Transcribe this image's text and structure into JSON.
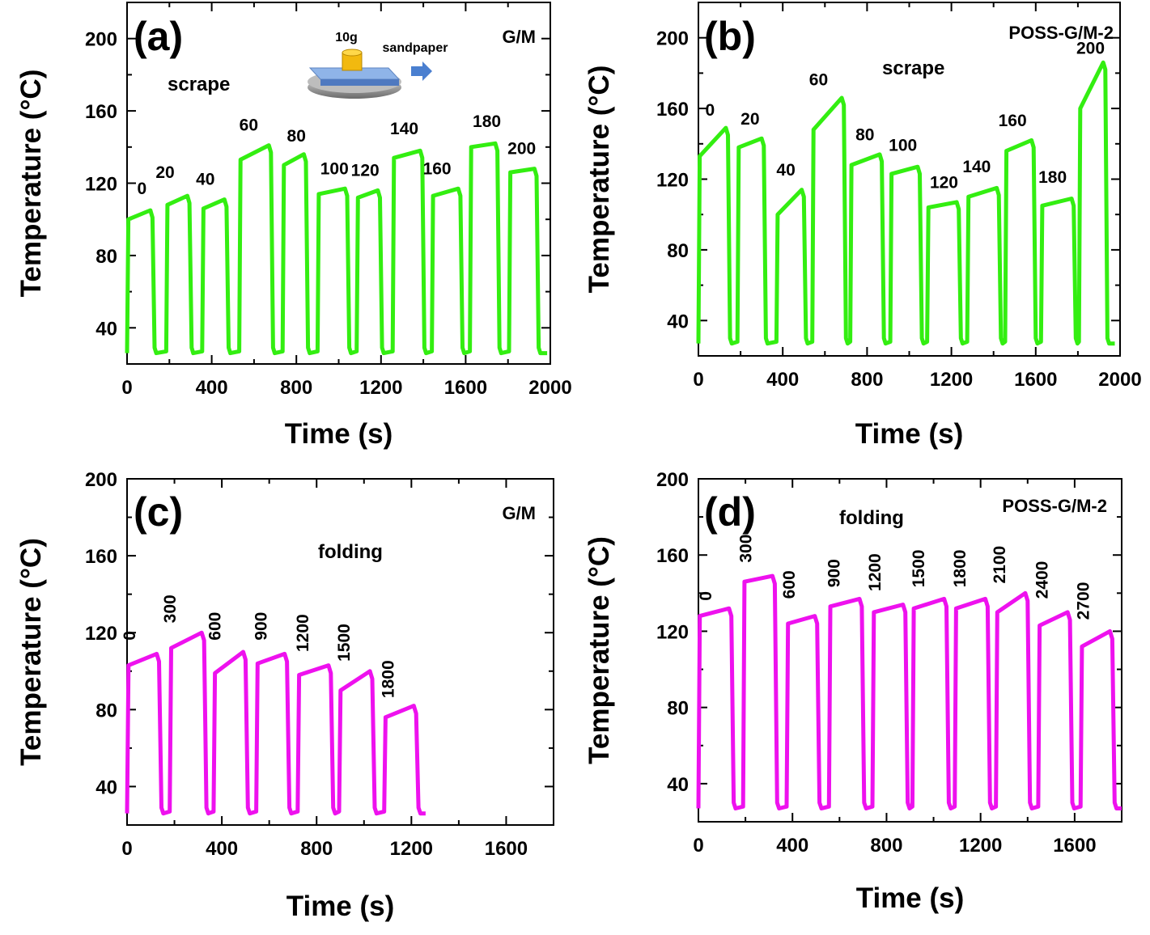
{
  "figure": {
    "line_colors": {
      "scrape": "#33ee11",
      "folding": "#ee11ee"
    },
    "inset": {
      "weight_label": "10g",
      "tool_label": "sandpaper"
    }
  },
  "chart_data": [
    {
      "type": "line",
      "panel_letter": "(a)",
      "sample": "G/M",
      "mode": "scrape",
      "xlabel": "Time (s)",
      "ylabel": "Temperature (°C)",
      "xlim": [
        0,
        2000
      ],
      "ylim": [
        20,
        220
      ],
      "xticks": [
        0,
        400,
        800,
        1200,
        1600,
        2000
      ],
      "yticks": [
        40,
        80,
        120,
        160,
        200
      ],
      "color": "#33ee11",
      "cycle_labels": [
        "0",
        "20",
        "40",
        "60",
        "80",
        "100",
        "120",
        "140",
        "160",
        "180",
        "200"
      ],
      "cycles": [
        {
          "on": 0,
          "hold": 110,
          "off": 130,
          "start": 100,
          "end": 105
        },
        {
          "on": 185,
          "hold": 285,
          "off": 305,
          "start": 108,
          "end": 113
        },
        {
          "on": 355,
          "hold": 460,
          "off": 480,
          "start": 106,
          "end": 111
        },
        {
          "on": 530,
          "hold": 670,
          "off": 690,
          "start": 133,
          "end": 141
        },
        {
          "on": 735,
          "hold": 835,
          "off": 855,
          "start": 130,
          "end": 136
        },
        {
          "on": 900,
          "hold": 1030,
          "off": 1050,
          "start": 114,
          "end": 117
        },
        {
          "on": 1085,
          "hold": 1185,
          "off": 1205,
          "start": 112,
          "end": 116
        },
        {
          "on": 1255,
          "hold": 1385,
          "off": 1405,
          "start": 134,
          "end": 138
        },
        {
          "on": 1440,
          "hold": 1565,
          "off": 1585,
          "start": 113,
          "end": 117
        },
        {
          "on": 1620,
          "hold": 1740,
          "off": 1760,
          "start": 140,
          "end": 142
        },
        {
          "on": 1805,
          "hold": 1925,
          "off": 1945,
          "start": 126,
          "end": 128
        }
      ],
      "baseline": 26,
      "x_end": 1985
    },
    {
      "type": "line",
      "panel_letter": "(b)",
      "sample": "POSS-G/M-2",
      "mode": "scrape",
      "xlabel": "Time (s)",
      "ylabel": "Temperature (°C)",
      "xlim": [
        0,
        2000
      ],
      "ylim": [
        20,
        220
      ],
      "xticks": [
        0,
        400,
        800,
        1200,
        1600,
        2000
      ],
      "yticks": [
        40,
        80,
        120,
        160,
        200
      ],
      "color": "#33ee11",
      "cycle_labels": [
        "0",
        "20",
        "40",
        "60",
        "80",
        "100",
        "120",
        "140",
        "160",
        "180",
        "200"
      ],
      "cycles": [
        {
          "on": 0,
          "hold": 130,
          "off": 150,
          "start": 133,
          "end": 149
        },
        {
          "on": 185,
          "hold": 300,
          "off": 320,
          "start": 138,
          "end": 143
        },
        {
          "on": 370,
          "hold": 490,
          "off": 510,
          "start": 100,
          "end": 114
        },
        {
          "on": 540,
          "hold": 680,
          "off": 700,
          "start": 148,
          "end": 166
        },
        {
          "on": 720,
          "hold": 860,
          "off": 880,
          "start": 128,
          "end": 134
        },
        {
          "on": 910,
          "hold": 1040,
          "off": 1060,
          "start": 123,
          "end": 127
        },
        {
          "on": 1085,
          "hold": 1225,
          "off": 1245,
          "start": 104,
          "end": 107
        },
        {
          "on": 1275,
          "hold": 1415,
          "off": 1435,
          "start": 110,
          "end": 115
        },
        {
          "on": 1455,
          "hold": 1580,
          "off": 1600,
          "start": 136,
          "end": 142
        },
        {
          "on": 1625,
          "hold": 1770,
          "off": 1790,
          "start": 105,
          "end": 109
        },
        {
          "on": 1805,
          "hold": 1920,
          "off": 1940,
          "start": 160,
          "end": 186
        }
      ],
      "baseline": 27,
      "x_end": 1975
    },
    {
      "type": "line",
      "panel_letter": "(c)",
      "sample": "G/M",
      "mode": "folding",
      "xlabel": "Time (s)",
      "ylabel": "Temperature (°C)",
      "xlim": [
        0,
        1800
      ],
      "ylim": [
        20,
        200
      ],
      "xticks": [
        0,
        400,
        800,
        1200,
        1600
      ],
      "yticks": [
        40,
        80,
        120,
        160,
        200
      ],
      "color": "#ee11ee",
      "cycle_labels": [
        "0",
        "300",
        "600",
        "900",
        "1200",
        "1500",
        "1800"
      ],
      "cycles": [
        {
          "on": 0,
          "hold": 125,
          "off": 145,
          "start": 103,
          "end": 109
        },
        {
          "on": 180,
          "hold": 315,
          "off": 335,
          "start": 112,
          "end": 120
        },
        {
          "on": 365,
          "hold": 490,
          "off": 510,
          "start": 99,
          "end": 110
        },
        {
          "on": 545,
          "hold": 665,
          "off": 685,
          "start": 104,
          "end": 109
        },
        {
          "on": 720,
          "hold": 850,
          "off": 870,
          "start": 98,
          "end": 103
        },
        {
          "on": 895,
          "hold": 1025,
          "off": 1045,
          "start": 90,
          "end": 100
        },
        {
          "on": 1085,
          "hold": 1210,
          "off": 1230,
          "start": 76,
          "end": 82
        }
      ],
      "baseline": 26,
      "x_end": 1260
    },
    {
      "type": "line",
      "panel_letter": "(d)",
      "sample": "POSS-G/M-2",
      "mode": "folding",
      "xlabel": "Time (s)",
      "ylabel": "Temperature (°C)",
      "xlim": [
        0,
        1800
      ],
      "ylim": [
        20,
        200
      ],
      "xticks": [
        0,
        400,
        800,
        1200,
        1600
      ],
      "yticks": [
        40,
        80,
        120,
        160,
        200
      ],
      "color": "#ee11ee",
      "cycle_labels": [
        "0",
        "300",
        "600",
        "900",
        "1200",
        "1500",
        "1800",
        "2100",
        "2400",
        "2700"
      ],
      "cycles": [
        {
          "on": 0,
          "hold": 130,
          "off": 150,
          "start": 128,
          "end": 132
        },
        {
          "on": 190,
          "hold": 315,
          "off": 335,
          "start": 146,
          "end": 149
        },
        {
          "on": 375,
          "hold": 495,
          "off": 515,
          "start": 124,
          "end": 128
        },
        {
          "on": 555,
          "hold": 685,
          "off": 705,
          "start": 133,
          "end": 137
        },
        {
          "on": 740,
          "hold": 870,
          "off": 890,
          "start": 130,
          "end": 134
        },
        {
          "on": 910,
          "hold": 1045,
          "off": 1065,
          "start": 132,
          "end": 137
        },
        {
          "on": 1090,
          "hold": 1220,
          "off": 1240,
          "start": 132,
          "end": 137
        },
        {
          "on": 1265,
          "hold": 1390,
          "off": 1410,
          "start": 130,
          "end": 140
        },
        {
          "on": 1445,
          "hold": 1570,
          "off": 1590,
          "start": 123,
          "end": 130
        },
        {
          "on": 1625,
          "hold": 1750,
          "off": 1770,
          "start": 112,
          "end": 120
        }
      ],
      "baseline": 27,
      "x_end": 1800
    }
  ]
}
